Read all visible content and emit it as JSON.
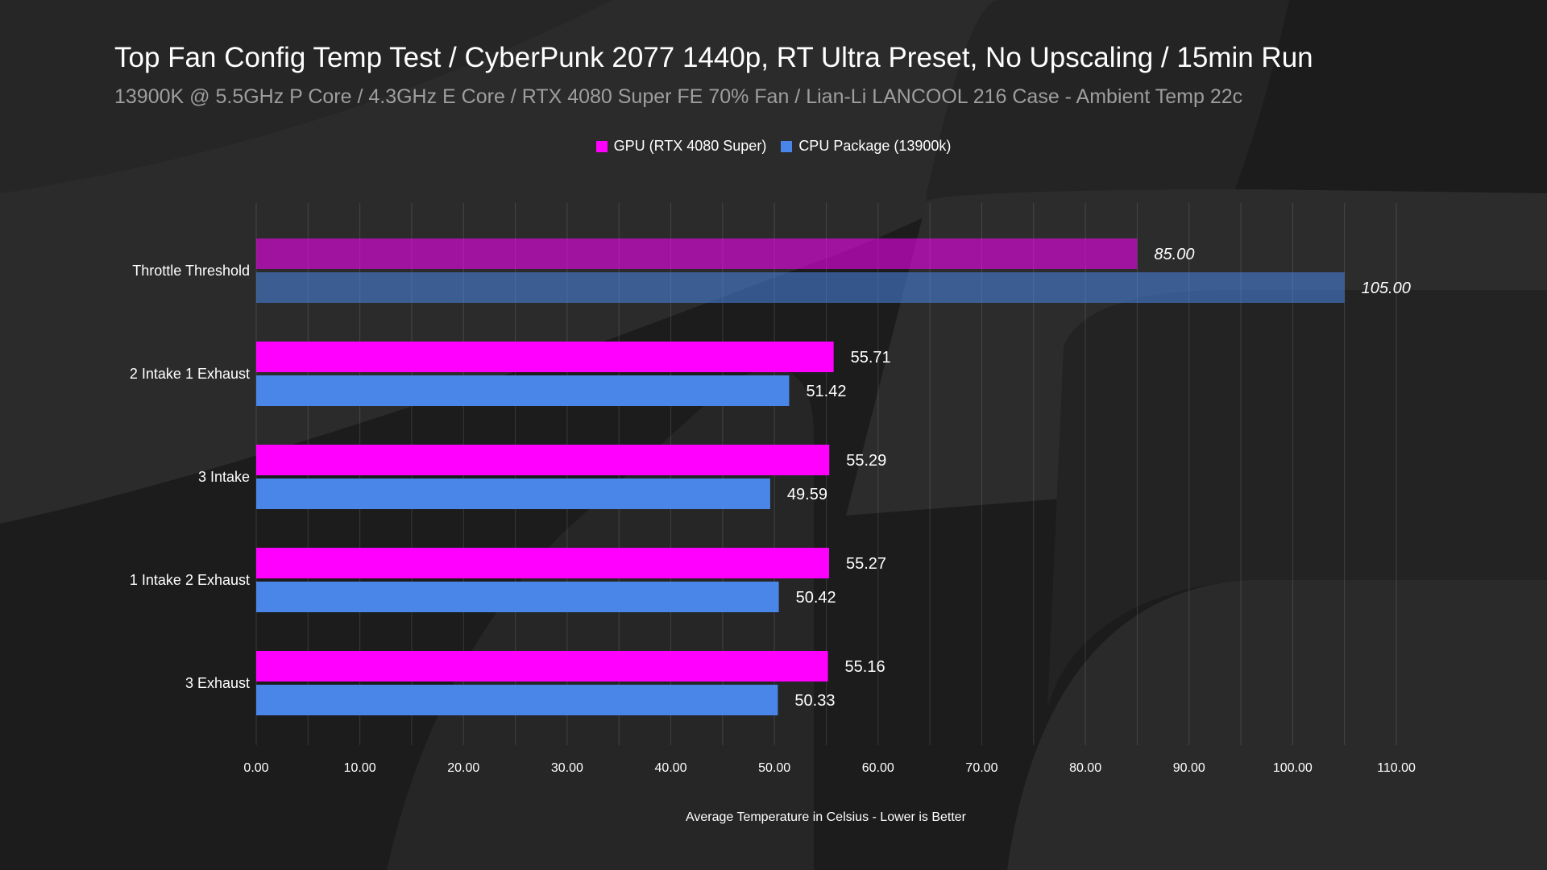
{
  "chart_data": {
    "type": "bar",
    "orientation": "horizontal",
    "title": "Top Fan Config Temp Test / CyberPunk 2077 1440p, RT Ultra Preset, No Upscaling / 15min Run",
    "subtitle": "13900K @ 5.5GHz P Core / 4.3GHz E Core / RTX 4080 Super FE 70% Fan / Lian-Li LANCOOL 216 Case - Ambient Temp 22c",
    "xlabel": "Average Temperature in Celsius - Lower is Better",
    "ylabel": "",
    "xlim": [
      0,
      110
    ],
    "xticks": [
      0,
      10,
      20,
      30,
      40,
      50,
      60,
      70,
      80,
      90,
      100,
      110
    ],
    "tick_labels": [
      "0.00",
      "10.00",
      "20.00",
      "30.00",
      "40.00",
      "50.00",
      "60.00",
      "70.00",
      "80.00",
      "90.00",
      "100.00",
      "110.00"
    ],
    "grid": true,
    "legend_position": "top-center",
    "categories": [
      "Throttle Threshold",
      "2 Intake 1 Exhaust",
      "3 Intake",
      "1 Intake 2 Exhaust",
      "3 Exhaust"
    ],
    "series": [
      {
        "name": "GPU (RTX 4080 Super)",
        "color": "#ff00ff",
        "values": [
          85.0,
          55.71,
          55.29,
          55.27,
          55.16
        ],
        "labels": [
          "85.00",
          "55.71",
          "55.29",
          "55.27",
          "55.16"
        ]
      },
      {
        "name": "CPU Package (13900k)",
        "color": "#4a86e8",
        "values": [
          105.0,
          51.42,
          49.59,
          50.42,
          50.33
        ],
        "labels": [
          "105.00",
          "51.42",
          "49.59",
          "50.42",
          "50.33"
        ]
      }
    ],
    "highlight_category_style": "translucent-italic"
  }
}
